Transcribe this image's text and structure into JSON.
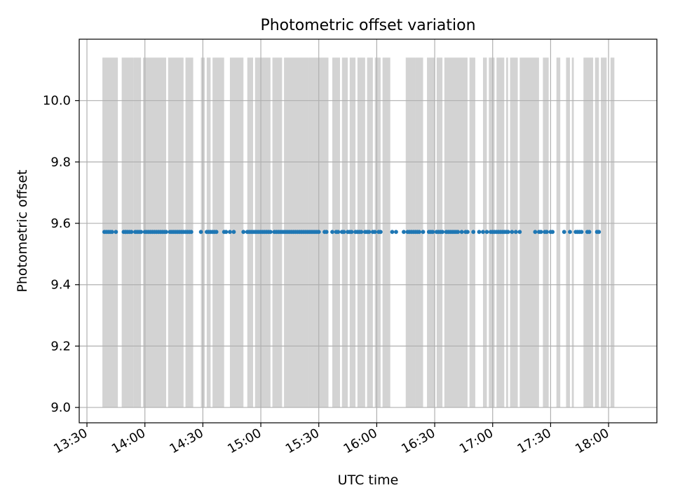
{
  "chart_data": {
    "type": "scatter",
    "title": "Photometric offset variation",
    "xlabel": "UTC time",
    "ylabel": "Photometric offset",
    "xlim": [
      "13:26",
      "18:25"
    ],
    "ylim": [
      8.95,
      10.2
    ],
    "x_tick_labels": [
      "13:30",
      "14:00",
      "14:30",
      "15:00",
      "15:30",
      "16:00",
      "16:30",
      "17:00",
      "17:30",
      "18:00"
    ],
    "y_tick_labels": [
      "9.0",
      "9.2",
      "9.4",
      "9.6",
      "9.8",
      "10.0"
    ],
    "grid": true,
    "legend": "none",
    "colors": {
      "points": "#1f77b4",
      "spans": "#d3d3d3",
      "grid": "#b0b0b0"
    },
    "exposure_spans": {
      "y_range": [
        9.0,
        10.14
      ],
      "intervals": [
        [
          "13:38",
          "13:46"
        ],
        [
          "13:48",
          "13:54"
        ],
        [
          "13:54",
          "13:58"
        ],
        [
          "13:59",
          "14:11"
        ],
        [
          "14:12",
          "14:20"
        ],
        [
          "14:21",
          "14:25"
        ],
        [
          "14:29",
          "14:31"
        ],
        [
          "14:32",
          "14:34"
        ],
        [
          "14:35",
          "14:41"
        ],
        [
          "14:44",
          "14:51"
        ],
        [
          "14:53",
          "14:56"
        ],
        [
          "14:57",
          "15:05"
        ],
        [
          "15:06",
          "15:11"
        ],
        [
          "15:12",
          "15:25"
        ],
        [
          "15:25",
          "15:31"
        ],
        [
          "15:31",
          "15:35"
        ],
        [
          "15:37",
          "15:41"
        ],
        [
          "15:42",
          "15:45"
        ],
        [
          "15:46",
          "15:49"
        ],
        [
          "15:50",
          "15:54"
        ],
        [
          "15:55",
          "15:58"
        ],
        [
          "15:59",
          "16:02"
        ],
        [
          "16:03",
          "16:07"
        ],
        [
          "16:15",
          "16:20"
        ],
        [
          "16:20",
          "16:24"
        ],
        [
          "16:26",
          "16:30"
        ],
        [
          "16:31",
          "16:34"
        ],
        [
          "16:35",
          "16:47"
        ],
        [
          "16:48",
          "16:51"
        ],
        [
          "16:55",
          "16:57"
        ],
        [
          "16:58",
          "17:01"
        ],
        [
          "17:02",
          "17:06"
        ],
        [
          "17:07",
          "17:08"
        ],
        [
          "17:09",
          "17:13"
        ],
        [
          "17:14",
          "17:24"
        ],
        [
          "17:26",
          "17:29"
        ],
        [
          "17:33",
          "17:35"
        ],
        [
          "17:38",
          "17:40"
        ],
        [
          "17:41",
          "17:42"
        ],
        [
          "17:47",
          "17:52"
        ],
        [
          "17:53",
          "17:55"
        ],
        [
          "17:56",
          "17:59"
        ],
        [
          "18:01",
          "18:03"
        ]
      ]
    },
    "series": [
      {
        "y": 9.572,
        "x": [
          "13:39",
          "13:40",
          "13:41",
          "13:42",
          "13:43",
          "13:45",
          "13:49",
          "13:50",
          "13:50",
          "13:51",
          "13:52",
          "13:53",
          "13:55",
          "13:56",
          "13:57",
          "13:58",
          "14:00",
          "14:01",
          "14:02",
          "14:03",
          "14:04",
          "14:05",
          "14:06",
          "14:07",
          "14:08",
          "14:09",
          "14:10",
          "14:11",
          "14:13",
          "14:14",
          "14:15",
          "14:16",
          "14:17",
          "14:18",
          "14:19",
          "14:20",
          "14:21",
          "14:22",
          "14:23",
          "14:24",
          "14:29",
          "14:32",
          "14:33",
          "14:34",
          "14:35",
          "14:36",
          "14:37",
          "14:41",
          "14:42",
          "14:44",
          "14:46",
          "14:51",
          "14:53",
          "14:54",
          "14:55",
          "14:56",
          "14:57",
          "14:58",
          "14:59",
          "15:00",
          "15:01",
          "15:02",
          "15:03",
          "15:04",
          "15:05",
          "15:07",
          "15:08",
          "15:09",
          "15:10",
          "15:11",
          "15:12",
          "15:13",
          "15:14",
          "15:15",
          "15:16",
          "15:17",
          "15:18",
          "15:19",
          "15:20",
          "15:21",
          "15:22",
          "15:23",
          "15:24",
          "15:25",
          "15:26",
          "15:27",
          "15:28",
          "15:29",
          "15:30",
          "15:33",
          "15:34",
          "15:37",
          "15:39",
          "15:40",
          "15:42",
          "15:43",
          "15:45",
          "15:46",
          "15:47",
          "15:49",
          "15:50",
          "15:51",
          "15:52",
          "15:54",
          "15:55",
          "15:56",
          "15:58",
          "15:59",
          "16:01",
          "16:02",
          "16:08",
          "16:10",
          "16:14",
          "16:16",
          "16:17",
          "16:18",
          "16:19",
          "16:20",
          "16:21",
          "16:22",
          "16:24",
          "16:27",
          "16:28",
          "16:29",
          "16:31",
          "16:32",
          "16:33",
          "16:34",
          "16:36",
          "16:37",
          "16:38",
          "16:39",
          "16:40",
          "16:41",
          "16:42",
          "16:44",
          "16:46",
          "16:47",
          "16:50",
          "16:53",
          "16:55",
          "16:57",
          "16:59",
          "17:00",
          "17:01",
          "17:02",
          "17:03",
          "17:04",
          "17:05",
          "17:06",
          "17:07",
          "17:08",
          "17:10",
          "17:12",
          "17:14",
          "17:22",
          "17:24",
          "17:25",
          "17:27",
          "17:28",
          "17:30",
          "17:31",
          "17:37",
          "17:40",
          "17:43",
          "17:44",
          "17:45",
          "17:46",
          "17:49",
          "17:50",
          "17:54",
          "17:55"
        ]
      }
    ]
  }
}
